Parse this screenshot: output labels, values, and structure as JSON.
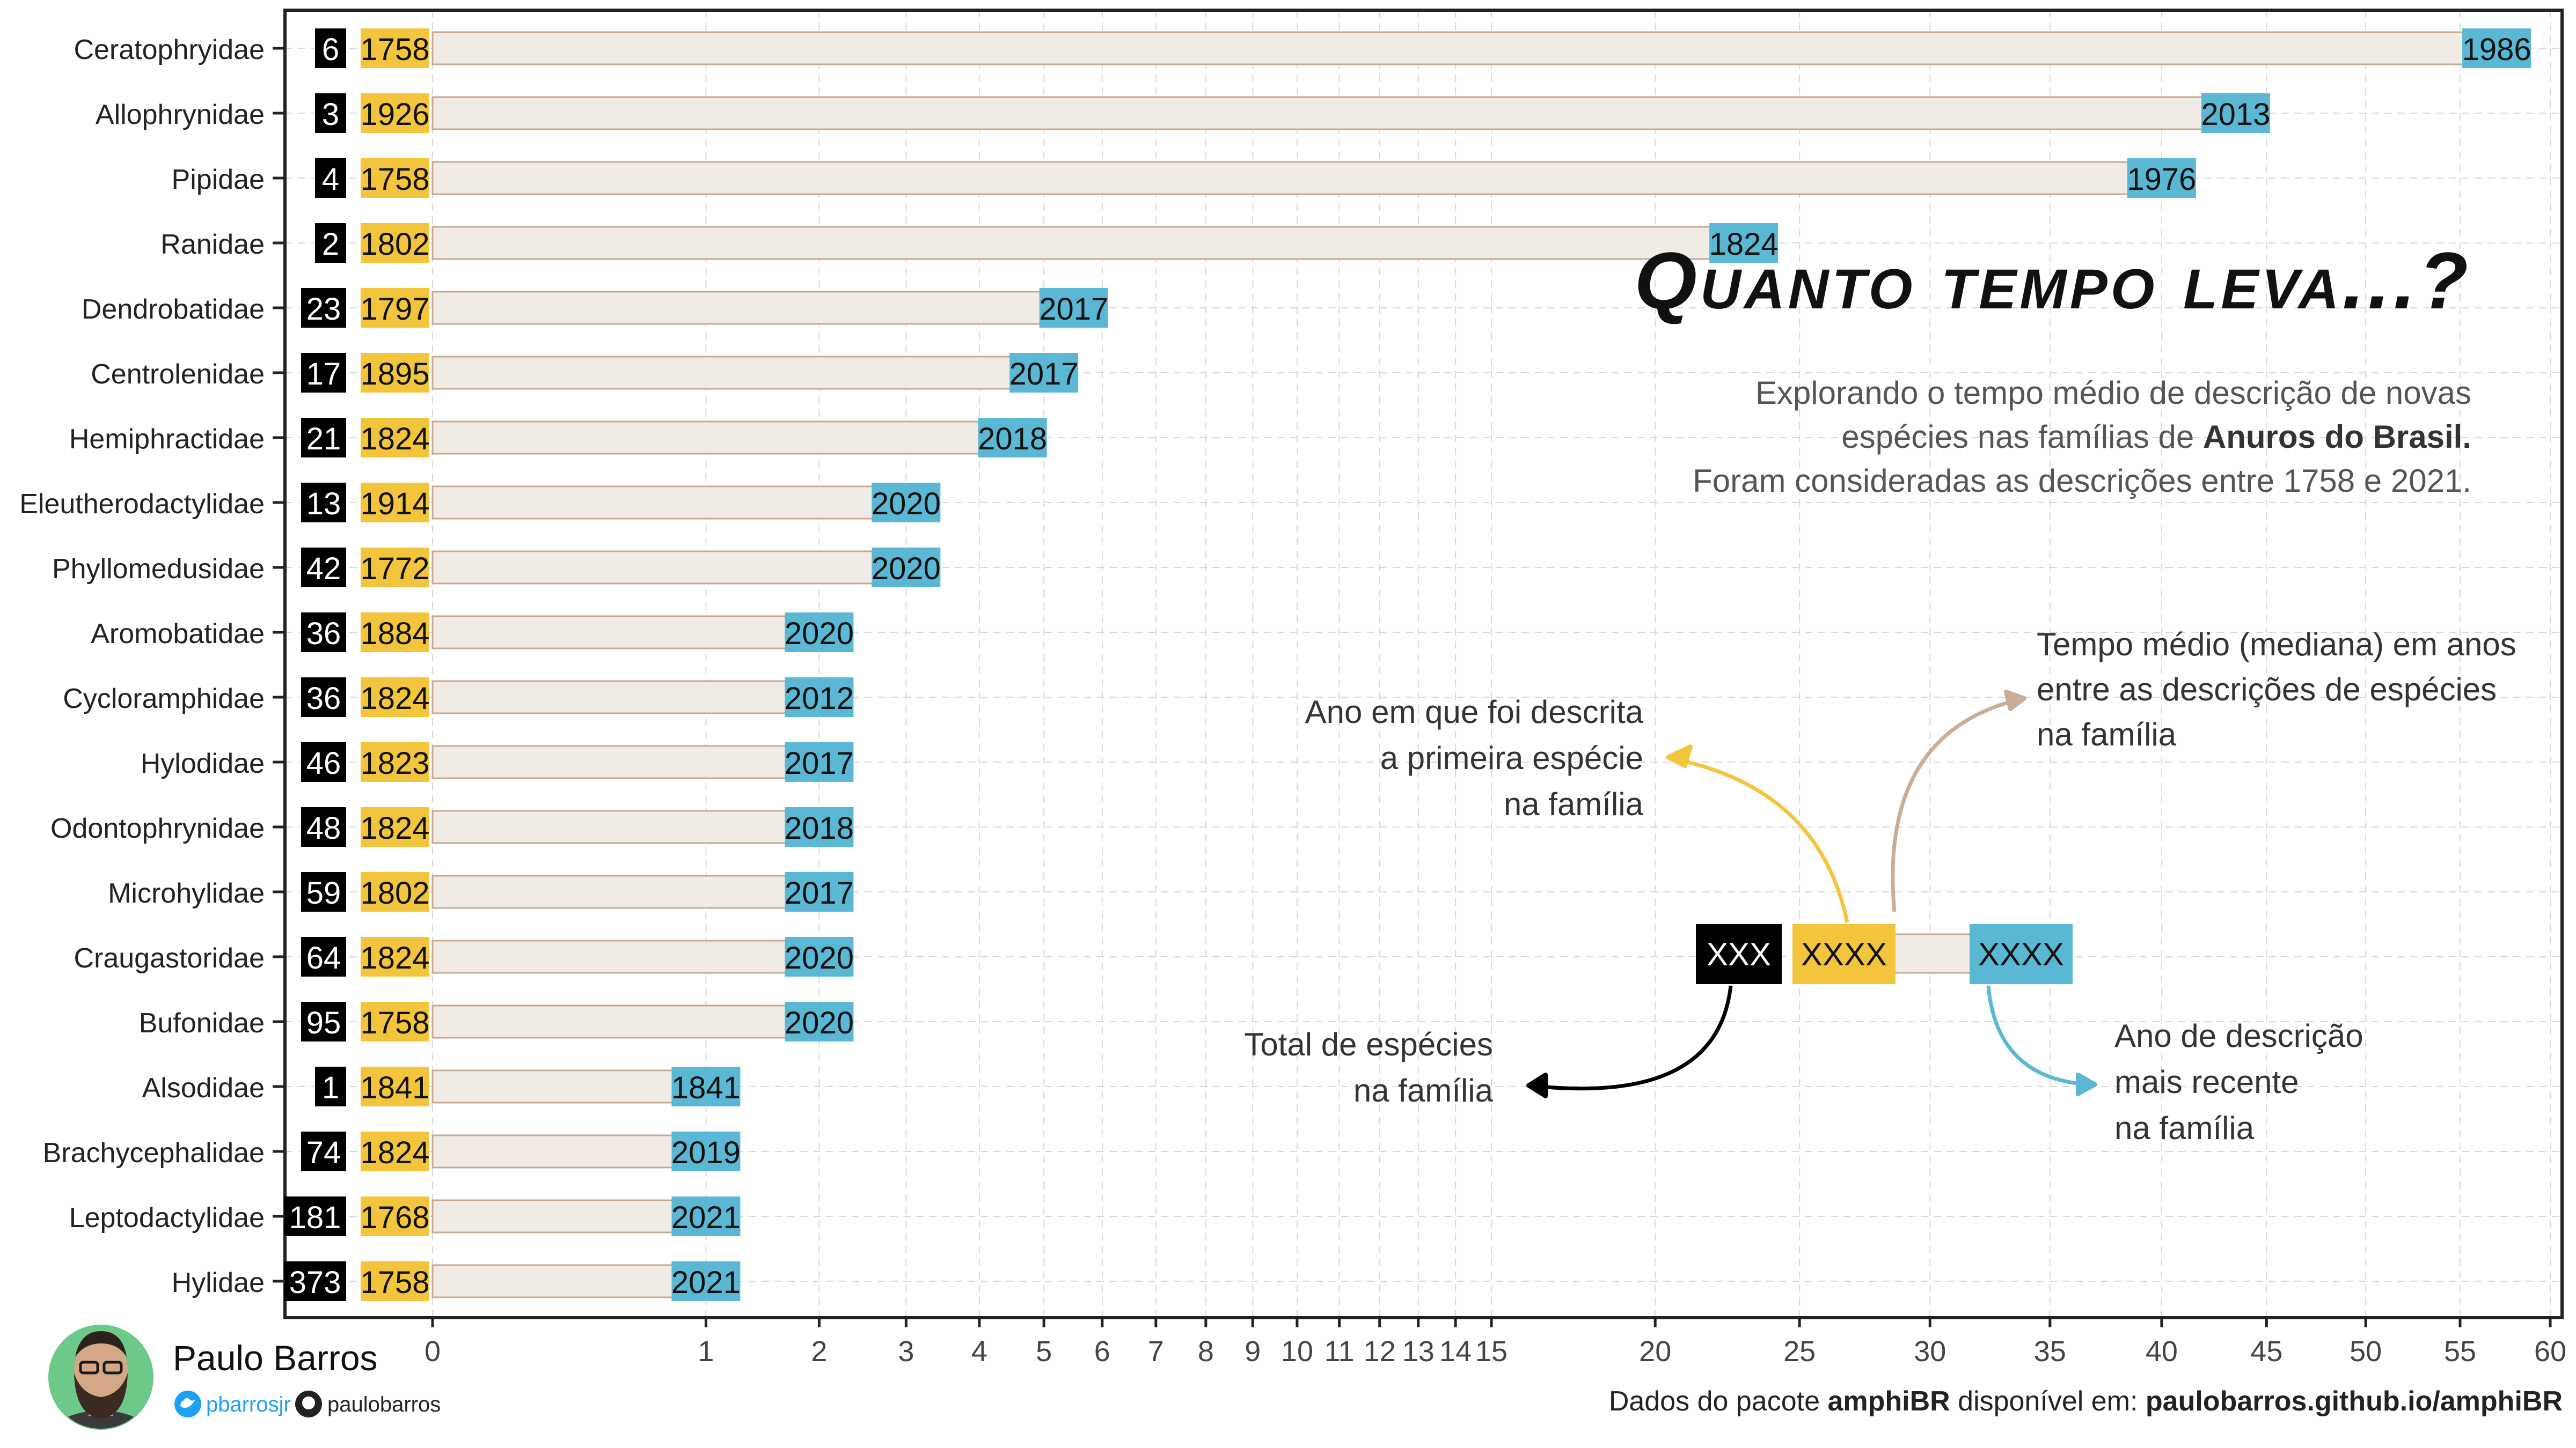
{
  "chart_data": {
    "type": "bar",
    "title": "Quanto tempo leva...?",
    "subtitle_lines": [
      "Explorando o tempo médio de descrição de novas",
      "espécies nas famílias de Anuros do Brasil.",
      "Foram consideradas as descrições entre 1758 e 2021."
    ],
    "subtitle_bold": "Anuros do Brasil.",
    "x_ticks": [
      0,
      1,
      2,
      3,
      4,
      5,
      6,
      7,
      8,
      9,
      10,
      11,
      12,
      13,
      14,
      15,
      20,
      25,
      30,
      35,
      40,
      45,
      50,
      55,
      60
    ],
    "xlim": [
      0,
      60
    ],
    "grid": true,
    "rows": [
      {
        "family": "Ceratophryidae",
        "species": 6,
        "first": 1758,
        "last": 1986,
        "median": 57.0
      },
      {
        "family": "Allophrynidae",
        "species": 3,
        "first": 1926,
        "last": 2013,
        "median": 43.5
      },
      {
        "family": "Pipidae",
        "species": 4,
        "first": 1758,
        "last": 1976,
        "median": 40.0
      },
      {
        "family": "Ranidae",
        "species": 2,
        "first": 1802,
        "last": 1824,
        "median": 23.0
      },
      {
        "family": "Dendrobatidae",
        "species": 23,
        "first": 1797,
        "last": 2017,
        "median": 5.5
      },
      {
        "family": "Centrolenidae",
        "species": 17,
        "first": 1895,
        "last": 2017,
        "median": 5.0
      },
      {
        "family": "Hemiphractidae",
        "species": 21,
        "first": 1824,
        "last": 2018,
        "median": 4.5
      },
      {
        "family": "Eleutherodactylidae",
        "species": 13,
        "first": 1914,
        "last": 2020,
        "median": 3.0
      },
      {
        "family": "Phyllomedusidae",
        "species": 42,
        "first": 1772,
        "last": 2020,
        "median": 3.0
      },
      {
        "family": "Aromobatidae",
        "species": 36,
        "first": 1884,
        "last": 2020,
        "median": 2.0
      },
      {
        "family": "Cycloramphidae",
        "species": 36,
        "first": 1824,
        "last": 2012,
        "median": 2.0
      },
      {
        "family": "Hylodidae",
        "species": 46,
        "first": 1823,
        "last": 2017,
        "median": 2.0
      },
      {
        "family": "Odontophrynidae",
        "species": 48,
        "first": 1824,
        "last": 2018,
        "median": 2.0
      },
      {
        "family": "Microhylidae",
        "species": 59,
        "first": 1802,
        "last": 2017,
        "median": 2.0
      },
      {
        "family": "Craugastoridae",
        "species": 64,
        "first": 1824,
        "last": 2020,
        "median": 2.0
      },
      {
        "family": "Bufonidae",
        "species": 95,
        "first": 1758,
        "last": 2020,
        "median": 2.0
      },
      {
        "family": "Alsodidae",
        "species": 1,
        "first": 1841,
        "last": 1841,
        "median": 1.0
      },
      {
        "family": "Brachycephalidae",
        "species": 74,
        "first": 1824,
        "last": 2019,
        "median": 1.0
      },
      {
        "family": "Leptodactylidae",
        "species": 181,
        "first": 1768,
        "last": 2021,
        "median": 1.0
      },
      {
        "family": "Hylidae",
        "species": 373,
        "first": 1758,
        "last": 2021,
        "median": 1.0
      }
    ]
  },
  "legend_example": {
    "total": "XXX",
    "first": "XXXX",
    "last": "XXXX",
    "label_first": [
      "Ano em que foi descrita",
      "a primeira espécie",
      "na família"
    ],
    "label_median": [
      "Tempo médio (mediana) em anos",
      "entre as descrições de espécies",
      "na família"
    ],
    "label_total": [
      "Total de espécies",
      "na família"
    ],
    "label_last": [
      "Ano de descrição",
      "mais recente",
      "na família"
    ]
  },
  "author": {
    "name": "Paulo Barros",
    "twitter": "pbarrosjr",
    "github": "paulobarros"
  },
  "caption": {
    "prefix": "Dados do pacote ",
    "package": "amphiBR",
    "middle": " disponível em: ",
    "url": "paulobarros.github.io/amphiBR"
  },
  "colors": {
    "total_box": "#000000",
    "first_box": "#f2c53d",
    "last_box": "#5bb8d4",
    "bar_fill": "#f1ebe6",
    "bar_stroke": "#c9a892",
    "first_arrow": "#f2c53d",
    "median_arrow": "#c9ad98",
    "total_arrow": "#000000",
    "last_arrow": "#5bb8d4",
    "grid": "#d9d9d9"
  }
}
